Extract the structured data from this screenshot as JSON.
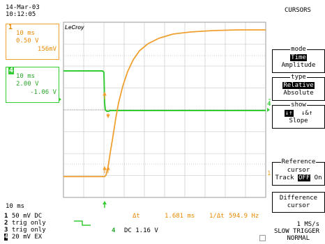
{
  "header": {
    "date": "14-Mar-03",
    "time": "10:12:05",
    "title": "CURSORS"
  },
  "brand": "LeCroy",
  "colors": {
    "ch1": "#f0a030",
    "ch4": "#33cc33",
    "grid": "#9a9a9a"
  },
  "ch1": {
    "num": "1",
    "timebase": "10 ms",
    "volts": "0.50 V",
    "cursor_value": "156mV"
  },
  "ch4": {
    "num": "4",
    "timebase": "10 ms",
    "volts": "2.00 V",
    "cursor_value": "-1.06 V"
  },
  "menu": {
    "mode": {
      "title": "mode",
      "options": [
        "Time",
        "Amplitude"
      ],
      "selected": "Time"
    },
    "type": {
      "title": "type",
      "options": [
        "Relative",
        "Absolute"
      ],
      "selected": "Relative"
    },
    "show": {
      "title": "show",
      "opt1": "↓↑",
      "opt2": "↓&↑",
      "opt3": "Slope"
    },
    "reference": {
      "title": "Reference",
      "line1": "cursor",
      "track_label": "Track",
      "off": "OFF",
      "on": "On"
    },
    "difference": {
      "line1": "Difference",
      "line2": "cursor"
    }
  },
  "bottom": {
    "timebase": "10 ms",
    "ch1_line": {
      "num": "1",
      "value": "50 mV",
      "coupling": "DC"
    },
    "ch2_line": {
      "num": "2",
      "value": "trig only"
    },
    "ch3_line": {
      "num": "3",
      "value": "trig only"
    },
    "ch4_line": {
      "num": "4",
      "value": "20 mV",
      "coupling": "EX"
    },
    "trigger_source": "4",
    "trigger_coupling": "DC 1.16 V",
    "delta_t_label": "Δt",
    "delta_t_value": "1.681 ms",
    "freq_label": "1/Δt",
    "freq_value": "594.9 Hz",
    "sample_rate": "1 MS/s",
    "trigger_mode": "SLOW TRIGGER",
    "trigger_status": "NORMAL"
  }
}
